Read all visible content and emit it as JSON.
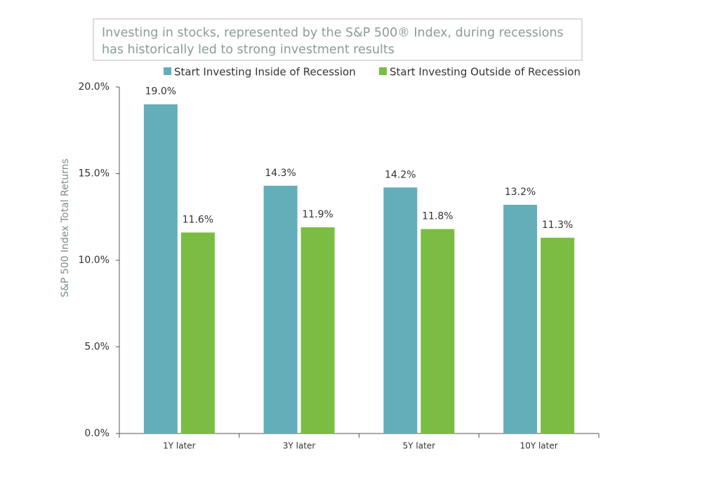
{
  "chart_data": {
    "type": "bar",
    "title": [
      "Investing in stocks, represented by the S&P 500® Index, during recessions",
      "has historically led to strong investment results"
    ],
    "y_label": "S&P 500 Index Total  Returns",
    "categories": [
      "1Y later",
      "3Y later",
      "5Y later",
      "10Y later"
    ],
    "series": [
      {
        "name": "Start Investing Inside of Recession",
        "color": "#63aeb8",
        "values": [
          19.0,
          14.3,
          14.2,
          13.2
        ],
        "value_labels": [
          "19.0%",
          "14.3%",
          "14.2%",
          "13.2%"
        ]
      },
      {
        "name": "Start Investing Outside of Recession",
        "color": "#7abd42",
        "values": [
          11.6,
          11.9,
          11.8,
          11.3
        ],
        "value_labels": [
          "11.6%",
          "11.9%",
          "11.8%",
          "11.3%"
        ]
      }
    ],
    "ylim": [
      0,
      20
    ],
    "yticks": [
      {
        "value": 0,
        "label": "0.0%"
      },
      {
        "value": 5,
        "label": "5.0%"
      },
      {
        "value": 10,
        "label": "10.0%"
      },
      {
        "value": 15,
        "label": "15.0%"
      },
      {
        "value": 20,
        "label": "20.0%"
      }
    ],
    "grid": false
  }
}
